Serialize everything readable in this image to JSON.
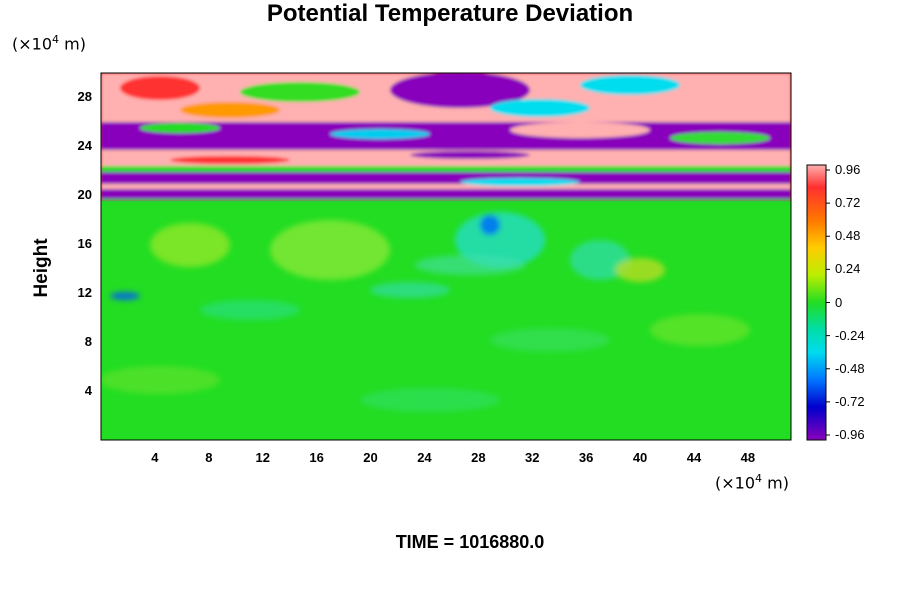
{
  "chart_data": {
    "type": "heatmap",
    "title": "Potential Temperature Deviation",
    "ylabel": "Height",
    "xlabel": "",
    "y_unit_prefix": "(×10",
    "y_unit_exp": "4",
    "y_unit_suffix": " m)",
    "x_unit_prefix": "(×10",
    "x_unit_exp": "4",
    "x_unit_suffix": " m)",
    "xlim": [
      0,
      51.2
    ],
    "ylim": [
      0,
      30
    ],
    "x_ticks": [
      "4",
      "8",
      "12",
      "16",
      "20",
      "24",
      "28",
      "32",
      "36",
      "40",
      "44",
      "48"
    ],
    "y_ticks": [
      "4",
      "8",
      "12",
      "16",
      "20",
      "24",
      "28"
    ],
    "colorbar": {
      "labels": [
        "0.96",
        "0.72",
        "0.48",
        "0.24",
        "0",
        "-0.24",
        "-0.48",
        "-0.72",
        "-0.96"
      ],
      "range": [
        -0.96,
        0.96
      ]
    },
    "regions": [
      {
        "y_from": 0,
        "y_to": 19.5,
        "approx_value": 0.0,
        "color": "#22dd22"
      },
      {
        "y_from": 19.5,
        "y_to": 23.5,
        "approx_value": -0.96,
        "color": "#8800bb"
      },
      {
        "y_from": 22.5,
        "y_to": 24,
        "approx_value": 0.96,
        "color": "#ffb6b6"
      },
      {
        "y_from": 24,
        "y_to": 30,
        "approx_value": "mixed",
        "color": "#ff2020"
      }
    ]
  },
  "footer": {
    "time": "TIME = 1016880.0"
  }
}
